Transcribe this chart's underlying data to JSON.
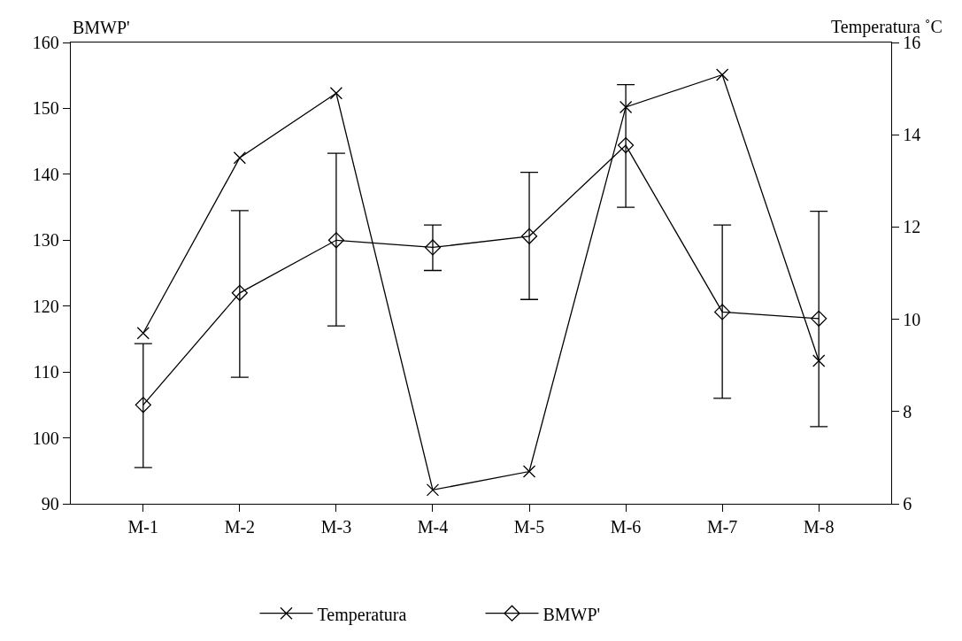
{
  "chart_data": {
    "type": "line",
    "ylabel": "BMWP'",
    "y2label": "Temperatura ˚C",
    "categories": [
      "M-1",
      "M-2",
      "M-3",
      "M-4",
      "M-5",
      "M-6",
      "M-7",
      "M-8"
    ],
    "series": [
      {
        "name": "Temperatura",
        "color": "#000000",
        "axis": "y2",
        "marker": "cross",
        "values": [
          9.7,
          13.5,
          14.9,
          6.3,
          6.7,
          14.6,
          15.3,
          9.1
        ]
      },
      {
        "name": "BMWP'",
        "color": "#000000",
        "marker": "diamond",
        "values": [
          105,
          122,
          130,
          128.9,
          130.6,
          144.4,
          119.1,
          118.1
        ],
        "errors": [
          [
            95.5,
            114.3
          ],
          [
            109.2,
            134.5
          ],
          [
            117,
            143.2
          ],
          [
            125.4,
            132.3
          ],
          [
            121,
            140.3
          ],
          [
            135,
            153.6
          ],
          [
            106,
            132.3
          ],
          [
            101.7,
            134.4
          ]
        ]
      }
    ],
    "ylim": [
      90,
      160
    ],
    "yticks": [
      90,
      100,
      110,
      120,
      130,
      140,
      150,
      160
    ],
    "y2lim": [
      6,
      16
    ],
    "y2ticks": [
      6,
      8,
      10,
      12,
      14,
      16
    ],
    "legend": "bottom"
  }
}
